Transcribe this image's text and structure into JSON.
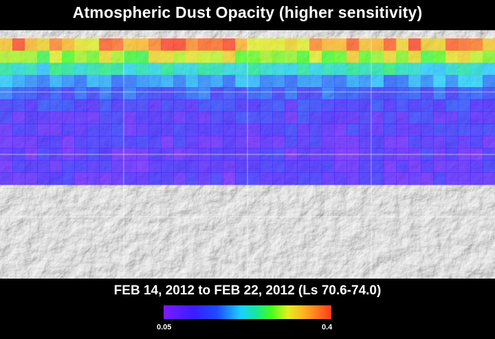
{
  "title": "Atmospheric Dust Opacity (higher sensitivity)",
  "date_range": "FEB 14, 2012 to FEB 22, 2012 (Ls 70.6-74.0)",
  "legend": {
    "min_label": "0.05",
    "max_label": "0.4",
    "colors": [
      "#7a1cff",
      "#3a1cff",
      "#1c4cff",
      "#1cd0ff",
      "#18e890",
      "#44ff1c",
      "#e0f020",
      "#ffb020",
      "#ff3a1c"
    ]
  },
  "map": {
    "grid_cols": 40,
    "grid_rows": 12,
    "row_profile": [
      0.93,
      0.72,
      0.47,
      0.33,
      0.22,
      0.16,
      0.13,
      0.12,
      0.11,
      0.1,
      0.1,
      0.09
    ],
    "hotspot_cols": [
      1,
      4,
      8,
      9,
      12,
      13,
      14,
      15,
      16,
      17,
      18,
      25,
      28,
      31,
      33,
      36,
      37,
      38
    ]
  }
}
